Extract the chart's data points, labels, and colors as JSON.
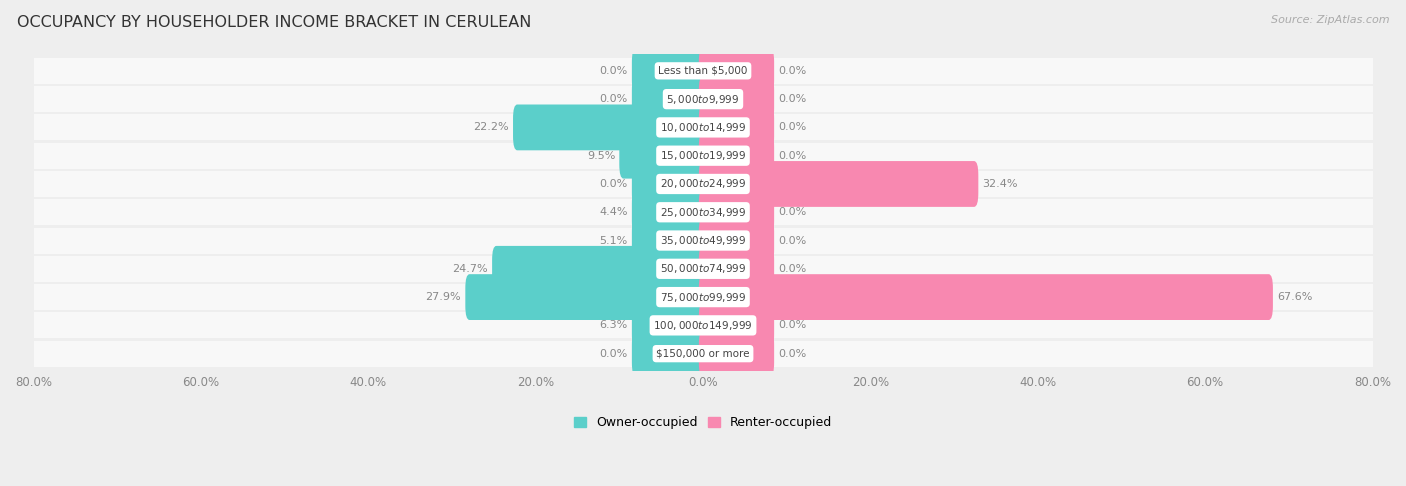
{
  "title": "OCCUPANCY BY HOUSEHOLDER INCOME BRACKET IN CERULEAN",
  "source": "Source: ZipAtlas.com",
  "categories": [
    "Less than $5,000",
    "$5,000 to $9,999",
    "$10,000 to $14,999",
    "$15,000 to $19,999",
    "$20,000 to $24,999",
    "$25,000 to $34,999",
    "$35,000 to $49,999",
    "$50,000 to $74,999",
    "$75,000 to $99,999",
    "$100,000 to $149,999",
    "$150,000 or more"
  ],
  "owner_values": [
    0.0,
    0.0,
    22.2,
    9.5,
    0.0,
    4.4,
    5.1,
    24.7,
    27.9,
    6.3,
    0.0
  ],
  "renter_values": [
    0.0,
    0.0,
    0.0,
    0.0,
    32.4,
    0.0,
    0.0,
    0.0,
    67.6,
    0.0,
    0.0
  ],
  "owner_color": "#5BCFCA",
  "renter_color": "#F888B0",
  "bg_color": "#eeeeee",
  "row_bg_color": "#f8f8f8",
  "row_sep_color": "#dddddd",
  "xlim": 80.0,
  "bar_height": 0.62,
  "min_bar_width": 8.0,
  "label_color": "#888888",
  "title_color": "#333333",
  "source_color": "#aaaaaa",
  "center_label_color": "#444444",
  "xtick_positions": [
    -80,
    -60,
    -40,
    -20,
    0,
    20,
    40,
    60,
    80
  ]
}
